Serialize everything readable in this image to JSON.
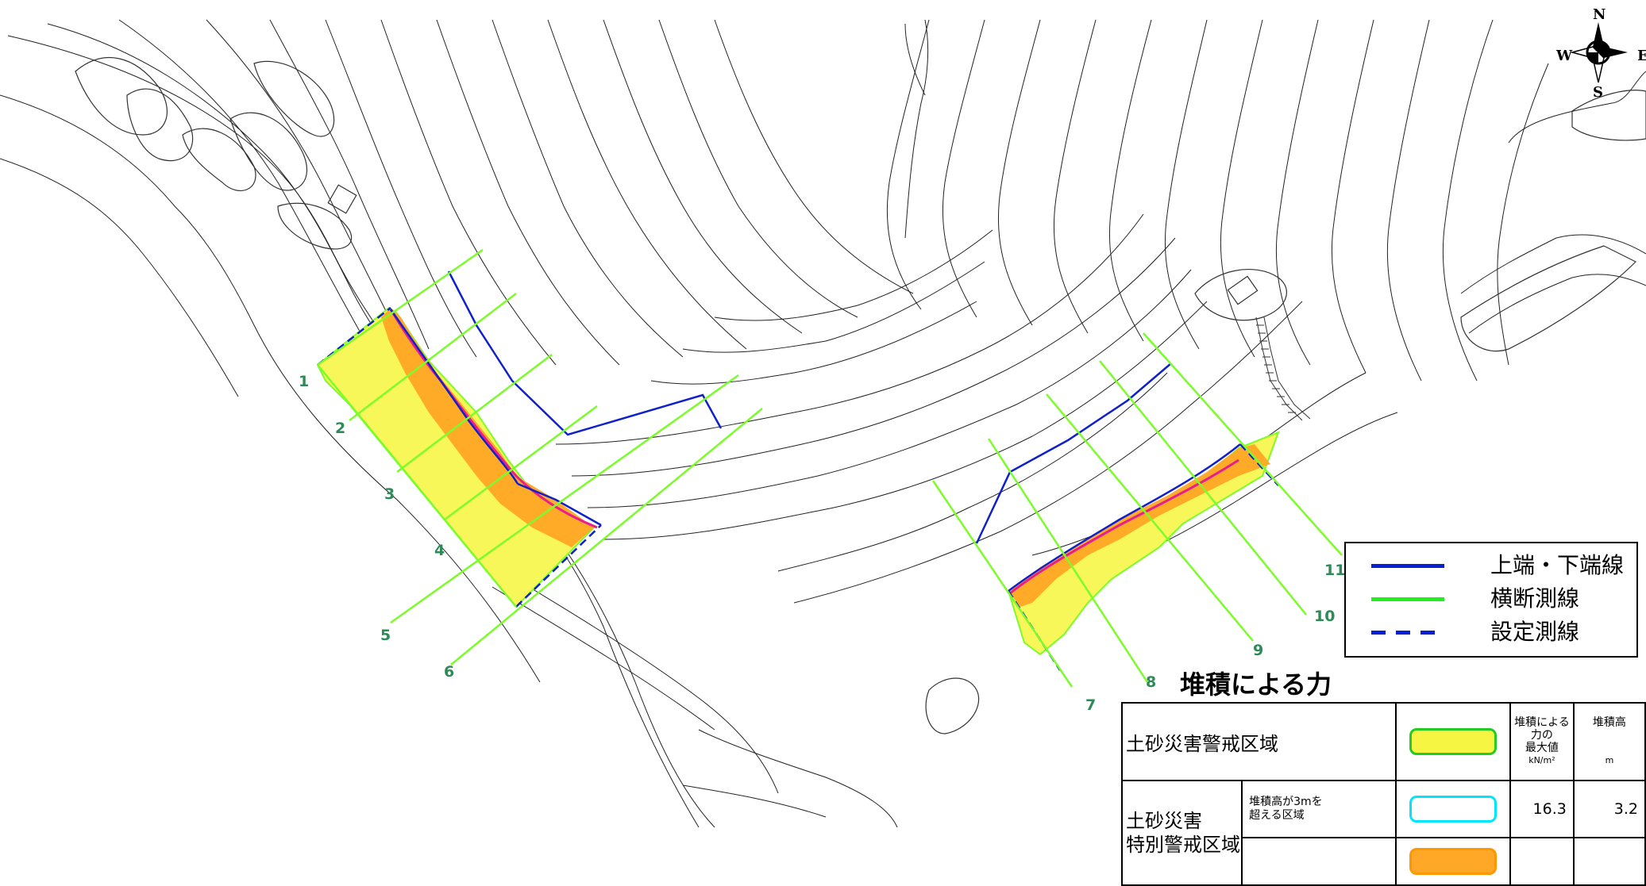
{
  "compass": {
    "north": "N",
    "south": "S",
    "west": "W",
    "east": "E"
  },
  "legend": {
    "items": [
      {
        "label": "上端・下端線",
        "color": "#0a1fd1",
        "style": "solid"
      },
      {
        "label": "横断測線",
        "color": "#22ee22",
        "style": "solid"
      },
      {
        "label": "設定測線",
        "color": "#0a1fd1",
        "style": "dashed"
      }
    ]
  },
  "force_title": "堆積による力",
  "table": {
    "headers": {
      "max_force": "堆積による\n力の\n最大値",
      "max_force_unit": "kN/m²",
      "height": "堆積高",
      "height_unit": "m"
    },
    "caution_zone_label": "土砂災害警戒区域",
    "special_zone_label": "土砂災害\n特別警戒区域",
    "special_row_sub": "堆積高が3mを\n超える区域",
    "special_row_force": "16.3",
    "special_row_height": "3.2"
  },
  "sections": [
    "1",
    "2",
    "3",
    "4",
    "5",
    "6",
    "7",
    "8",
    "9",
    "10",
    "11"
  ],
  "colors": {
    "caution_yellow": "#f5f542",
    "special_orange": "#ffa726",
    "deposit_cyan": "#00ffff",
    "boundary_magenta": "#e91e8c",
    "survey_green": "#7cfc2a",
    "edge_blue": "#1021c8"
  }
}
